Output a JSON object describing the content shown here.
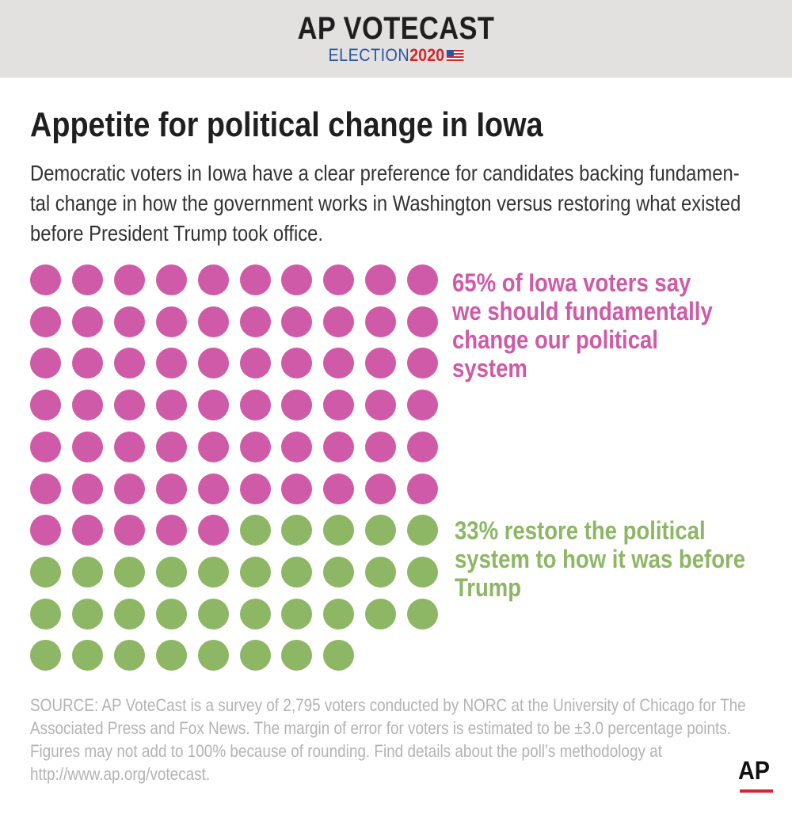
{
  "brand": {
    "title": "AP VOTECAST",
    "election": "ELECTION",
    "year": "2020"
  },
  "headline": "Appetite for political change in Iowa",
  "subtitle": "Democratic voters in Iowa have a clear preference for candidates backing fundamen-tal change in how the government works in Washington versus restoring what existed before President Trump took office.",
  "labels": {
    "change": "65% of Iowa voters say\nwe should fundamentally\nchange our political\nsystem",
    "restore": "33% restore the political\nsystem to how it was before\nTrump"
  },
  "source": "SOURCE: AP VoteCast is a survey of 2,795 voters conducted by NORC at the University of Chicago for The Associated Press and Fox News. The margin of error for voters is estimated to be ±3.0 percentage points. Figures may not add to 100% because of rounding. Find details about the poll’s methodology at http://www.ap.org/votecast.",
  "logo": "AP",
  "colors": {
    "change": "#cf5aa7",
    "restore": "#8db665",
    "brand_red": "#d2272e",
    "brand_blue": "#2a55a5"
  },
  "chart_data": {
    "type": "waffle",
    "series": [
      {
        "name": "65% of Iowa voters say we should fundamentally change our political system",
        "value": 65,
        "color": "#cf5aa7"
      },
      {
        "name": "33% restore the political system to how it was before Trump",
        "value": 33,
        "color": "#8db665"
      }
    ],
    "total_dots": 98
  }
}
